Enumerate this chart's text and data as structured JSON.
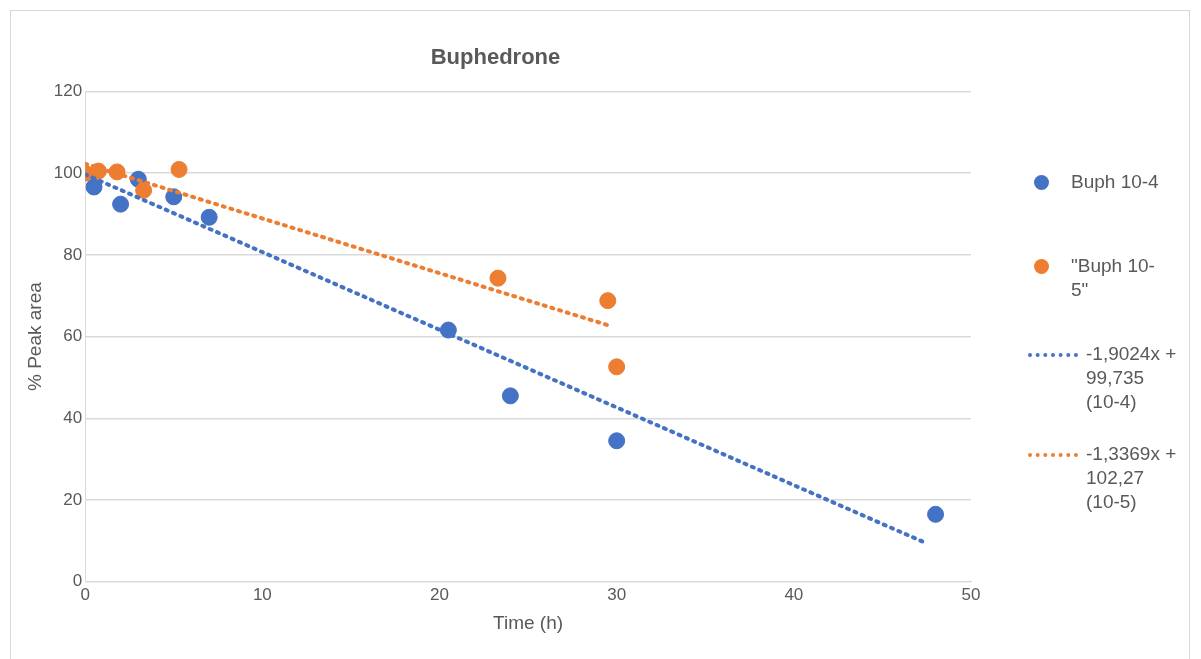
{
  "chart_data": {
    "type": "scatter",
    "title": "Buphedrone",
    "xlabel": "Time (h)",
    "ylabel": "% Peak area",
    "xlim": [
      0,
      50
    ],
    "xticks": [
      0,
      10,
      20,
      30,
      40,
      50
    ],
    "ylim": [
      0,
      120
    ],
    "yticks": [
      0,
      20,
      40,
      60,
      80,
      100,
      120
    ],
    "grid": "y",
    "legend": "right",
    "marker": "circle",
    "series": [
      {
        "name": "Buph 10-4",
        "color": "#4472c4",
        "x": [
          0.5,
          1,
          2,
          3,
          5,
          7,
          20.5,
          24,
          30,
          48
        ],
        "values": [
          96.6,
          null,
          92.4,
          98.5,
          94.2,
          89.2,
          61.6,
          45.5,
          34.5,
          16.5
        ]
      },
      {
        "name": "\"Buph 10-5\"",
        "color": "#ed7d31",
        "x": [
          0,
          0.33,
          0.75,
          1.8,
          3.3,
          5.3,
          23.3,
          29.5,
          30
        ],
        "values": [
          100,
          null,
          100.5,
          100.3,
          95.8,
          100.9,
          74.3,
          68.8,
          52.6
        ]
      },
      {
        "name": "-1,9024x + 99,735 (10-4)",
        "type": "line",
        "marker": "none",
        "line_style": "dotted",
        "color": "#4472c4",
        "x": [
          0,
          47.5
        ],
        "values": [
          99.7,
          9.4
        ]
      },
      {
        "name": "-1,3369x + 102,27 (10-5)",
        "type": "line",
        "marker": "none",
        "line_style": "dotted",
        "color": "#ed7d31",
        "x": [
          0,
          29.5
        ],
        "values": [
          102.3,
          62.8
        ]
      }
    ]
  }
}
